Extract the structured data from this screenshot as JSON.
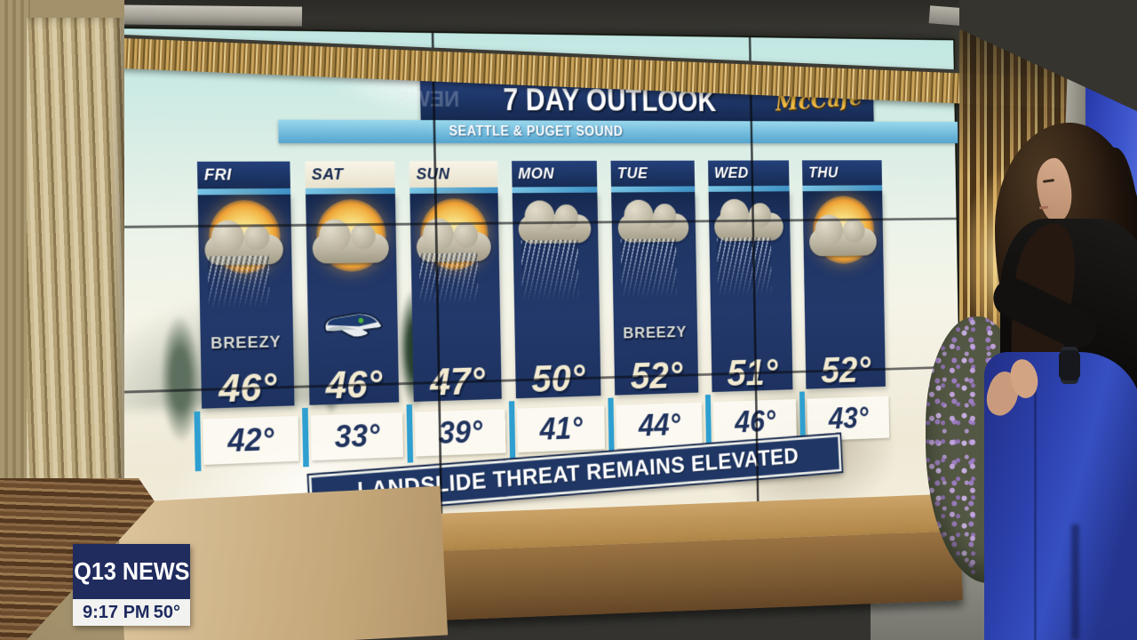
{
  "board": {
    "title": "7 DAY OUTLOOK",
    "subtitle": "SEATTLE & PUGET SOUND",
    "sponsor": "McCafé",
    "ghost_text": "NEWS",
    "banner": "LANDSLIDE THREAT REMAINS ELEVATED",
    "days": [
      {
        "name": "FRI",
        "header": "dark",
        "icon": "sun-cloud-rain",
        "note": "BREEZY",
        "high": "46°",
        "low": "42°"
      },
      {
        "name": "SAT",
        "header": "light",
        "icon": "sun-cloud",
        "badge": "seahawks-logo",
        "high": "46°",
        "low": "33°"
      },
      {
        "name": "SUN",
        "header": "light",
        "icon": "sun-cloud-rain",
        "high": "47°",
        "low": "39°"
      },
      {
        "name": "MON",
        "header": "dark",
        "icon": "rain",
        "high": "50°",
        "low": "41°"
      },
      {
        "name": "TUE",
        "header": "dark",
        "icon": "rain",
        "note": "BREEZY",
        "high": "52°",
        "low": "44°"
      },
      {
        "name": "WED",
        "header": "dark",
        "icon": "rain",
        "high": "51°",
        "low": "46°"
      },
      {
        "name": "THU",
        "header": "dark",
        "icon": "sun-cloud",
        "high": "52°",
        "low": "43°"
      }
    ],
    "colors": {
      "panel_navy": "#1e335f",
      "bar_navy": "#1c3468",
      "light_blue": "#6fc0e2",
      "cream_text": "#f2ead0",
      "teal_accent": "#2e9fd0",
      "mccafe_gold": "#f3bc41",
      "banner_navy": "#203765"
    }
  },
  "station": {
    "name": "Q13 NEWS",
    "time": "9:17 PM",
    "temperature": "50°"
  }
}
